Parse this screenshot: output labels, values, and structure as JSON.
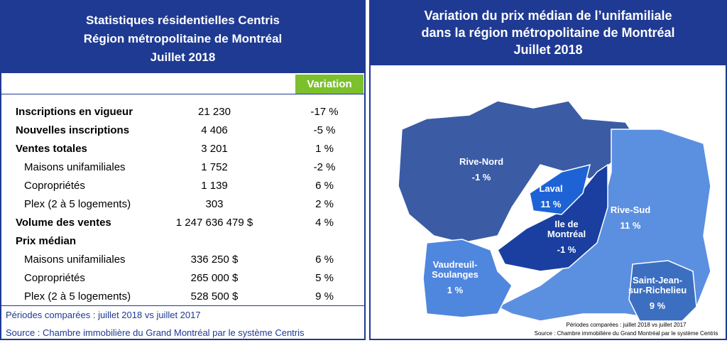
{
  "left": {
    "title": [
      "Statistiques résidentielles Centris",
      "Région métropolitaine de Montréal",
      "Juillet 2018"
    ],
    "variation_header": "Variation",
    "rows": [
      {
        "label": "Inscriptions en vigueur",
        "value": "21 230",
        "variation": "-17 %"
      },
      {
        "label": "Nouvelles inscriptions",
        "value": "4 406",
        "variation": "-5 %"
      },
      {
        "label": "Ventes totales",
        "value": "3 201",
        "variation": "1 %",
        "sub": [
          {
            "label": "Maisons unifamiliales",
            "value": "1 752",
            "variation": "-2 %"
          },
          {
            "label": "Copropriétés",
            "value": "1 139",
            "variation": "6 %"
          },
          {
            "label": "Plex (2 à 5 logements)",
            "value": "303",
            "variation": "2 %"
          }
        ]
      },
      {
        "label": "Volume des ventes",
        "value": "1 247 636 479 $",
        "variation": "4 %"
      },
      {
        "label": "Prix médian",
        "sub": [
          {
            "label": "Maisons unifamiliales",
            "value": "336 250 $",
            "variation": "6 %"
          },
          {
            "label": "Copropriétés",
            "value": "265 000 $",
            "variation": "5 %"
          },
          {
            "label": "Plex (2 à 5 logements)",
            "value": "528 500 $",
            "variation": "9 %"
          }
        ]
      }
    ],
    "notes": [
      "Périodes comparées : juillet 2018 vs juillet 2017",
      "Source : Chambre immobilière du Grand Montréal par le système Centris"
    ]
  },
  "right": {
    "title": [
      "Variation du prix médian de l’unifamiliale",
      "dans la région métropolitaine de Montréal",
      "Juillet 2018"
    ],
    "regions": [
      {
        "name": [
          "Rive-Nord"
        ],
        "variation": "-1 %"
      },
      {
        "name": [
          "Laval"
        ],
        "variation": "11 %"
      },
      {
        "name": [
          "Ile de",
          "Montréal"
        ],
        "variation": "-1 %"
      },
      {
        "name": [
          "Rive-Sud"
        ],
        "variation": "11 %"
      },
      {
        "name": [
          "Vaudreuil-",
          "Soulanges"
        ],
        "variation": "1 %"
      },
      {
        "name": [
          "Saint-Jean-",
          "sur-Richelieu"
        ],
        "variation": "9 %"
      }
    ],
    "notes": [
      "Périodes comparées : juillet 2018 vs juillet 2017",
      "Source : Chambre immobilière du Grand Montréal par le système Centris"
    ]
  }
}
